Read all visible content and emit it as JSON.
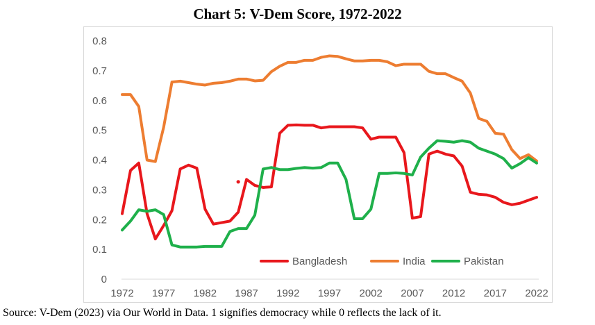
{
  "chart_data": {
    "type": "line",
    "title": "Chart 5: V-Dem Score, 1972-2022",
    "xlabel": "",
    "ylabel": "",
    "xlim": [
      1972,
      2022
    ],
    "ylim": [
      0,
      0.8
    ],
    "x_ticks": [
      "1972",
      "1977",
      "1982",
      "1987",
      "1992",
      "1997",
      "2002",
      "2007",
      "2012",
      "2017",
      "2022"
    ],
    "y_ticks": [
      "0",
      "0.1",
      "0.2",
      "0.3",
      "0.4",
      "0.5",
      "0.6",
      "0.7",
      "0.8"
    ],
    "grid": false,
    "legend_position": "bottom-right",
    "x": [
      1972,
      1973,
      1974,
      1975,
      1976,
      1977,
      1978,
      1979,
      1980,
      1981,
      1982,
      1983,
      1984,
      1985,
      1986,
      1987,
      1988,
      1989,
      1990,
      1991,
      1992,
      1993,
      1994,
      1995,
      1996,
      1997,
      1998,
      1999,
      2000,
      2001,
      2002,
      2003,
      2004,
      2005,
      2006,
      2007,
      2008,
      2009,
      2010,
      2011,
      2012,
      2013,
      2014,
      2015,
      2016,
      2017,
      2018,
      2019,
      2020,
      2021,
      2022
    ],
    "series": [
      {
        "name": "Bangladesh",
        "color": "#e8171c",
        "values": [
          0.22,
          0.365,
          0.39,
          0.22,
          0.135,
          0.18,
          0.23,
          0.37,
          0.383,
          0.373,
          0.235,
          0.185,
          0.19,
          0.195,
          0.225,
          0.335,
          0.315,
          0.308,
          0.31,
          0.49,
          0.517,
          0.518,
          0.517,
          0.517,
          0.508,
          0.512,
          0.512,
          0.512,
          0.512,
          0.508,
          0.47,
          0.477,
          0.477,
          0.477,
          0.425,
          0.205,
          0.21,
          0.42,
          0.43,
          0.42,
          0.414,
          0.38,
          0.292,
          0.285,
          0.283,
          0.275,
          0.258,
          0.25,
          0.255,
          0.265,
          0.275
        ],
        "isolated_point": {
          "x": 1986,
          "y": 0.327
        }
      },
      {
        "name": "India",
        "color": "#ed7d31",
        "values": [
          0.62,
          0.62,
          0.58,
          0.4,
          0.395,
          0.51,
          0.662,
          0.665,
          0.66,
          0.655,
          0.652,
          0.658,
          0.66,
          0.665,
          0.672,
          0.672,
          0.666,
          0.668,
          0.697,
          0.715,
          0.728,
          0.728,
          0.735,
          0.735,
          0.745,
          0.75,
          0.748,
          0.74,
          0.733,
          0.733,
          0.735,
          0.735,
          0.73,
          0.717,
          0.722,
          0.722,
          0.722,
          0.698,
          0.69,
          0.69,
          0.677,
          0.665,
          0.625,
          0.54,
          0.53,
          0.49,
          0.487,
          0.435,
          0.405,
          0.418,
          0.397
        ],
        "isolated_point": null
      },
      {
        "name": "Pakistan",
        "color": "#1fb04b",
        "values": [
          0.165,
          0.195,
          0.233,
          0.228,
          0.233,
          0.217,
          0.115,
          0.108,
          0.108,
          0.108,
          0.11,
          0.11,
          0.11,
          0.16,
          0.17,
          0.17,
          0.215,
          0.37,
          0.375,
          0.368,
          0.368,
          0.372,
          0.375,
          0.373,
          0.375,
          0.39,
          0.39,
          0.335,
          0.203,
          0.203,
          0.235,
          0.355,
          0.355,
          0.357,
          0.355,
          0.35,
          0.41,
          0.44,
          0.465,
          0.463,
          0.46,
          0.465,
          0.46,
          0.44,
          0.43,
          0.42,
          0.405,
          0.373,
          0.388,
          0.408,
          0.39
        ],
        "isolated_point": null
      }
    ]
  },
  "source_note": "Source: V-Dem (2023) via Our World in Data. 1 signifies democracy while 0 reflects the lack of it."
}
